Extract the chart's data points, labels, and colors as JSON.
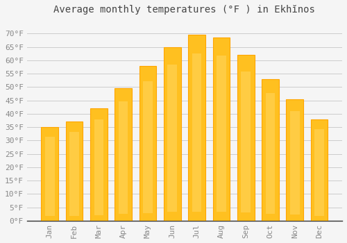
{
  "title": "Average monthly temperatures (°F ) in Ekhĭnos",
  "months": [
    "Jan",
    "Feb",
    "Mar",
    "Apr",
    "May",
    "Jun",
    "Jul",
    "Aug",
    "Sep",
    "Oct",
    "Nov",
    "Dec"
  ],
  "values": [
    35,
    37,
    42,
    49.5,
    58,
    65,
    69.5,
    68.5,
    62,
    53,
    45.5,
    38
  ],
  "bar_color_main": "#FFC020",
  "bar_color_light": "#FFD966",
  "bar_color_edge": "#FFA500",
  "ylim": [
    0,
    75
  ],
  "yticks": [
    0,
    5,
    10,
    15,
    20,
    25,
    30,
    35,
    40,
    45,
    50,
    55,
    60,
    65,
    70
  ],
  "background_color": "#f5f5f5",
  "plot_bg_color": "#f5f5f5",
  "grid_color": "#cccccc",
  "title_fontsize": 10,
  "tick_fontsize": 8,
  "tick_color": "#888888",
  "font_family": "monospace"
}
